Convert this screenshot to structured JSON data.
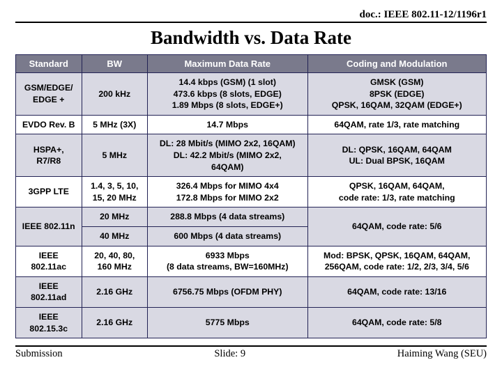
{
  "doc_header": "doc.: IEEE 802.11-12/1196r1",
  "title": "Bandwidth vs. Data Rate",
  "table": {
    "col_widths_pct": [
      14,
      14,
      34,
      38
    ],
    "columns": [
      "Standard",
      "BW",
      "Maximum Data Rate",
      "Coding and Modulation"
    ],
    "rows": [
      {
        "shade": true,
        "cells": [
          {
            "text": "GSM/EDGE/\nEDGE +"
          },
          {
            "text": "200 kHz",
            "cls": "red"
          },
          {
            "text": "14.4 kbps (GSM)  (1 slot)\n473.6 kbps (8 slots, EDGE)\n1.89 Mbps (8 slots, EDGE+)"
          },
          {
            "text": "GMSK (GSM)\n8PSK (EDGE)\nQPSK, 16QAM, 32QAM (EDGE+)"
          }
        ]
      },
      {
        "shade": false,
        "cells": [
          {
            "text": "EVDO Rev. B"
          },
          {
            "text": "5 MHz (3X)"
          },
          {
            "text": "14.7 Mbps"
          },
          {
            "text": "64QAM, rate 1/3, rate matching"
          }
        ]
      },
      {
        "shade": true,
        "cells": [
          {
            "text": "HSPA+,\nR7/R8"
          },
          {
            "text": "5 MHz"
          },
          {
            "text": "DL: 28 Mbit/s (MIMO 2x2, 16QAM)\nDL: 42.2 Mbit/s (MIMO 2x2,\n64QAM)"
          },
          {
            "text": "DL: QPSK, 16QAM, 64QAM\nUL: Dual BPSK, 16QAM"
          }
        ]
      },
      {
        "shade": false,
        "cells": [
          {
            "text": "3GPP LTE"
          },
          {
            "text": "1.4, 3, 5, 10,\n15, 20 MHz"
          },
          {
            "text": "326.4 Mbps for MIMO 4x4\n172.8 Mbps for MIMO 2x2"
          },
          {
            "text": "QPSK, 16QAM, 64QAM,\ncode rate: 1/3, rate matching"
          }
        ]
      },
      {
        "shade": true,
        "rowspan_first": 2,
        "cells": [
          {
            "text": "IEEE 802.11n",
            "rowspan": 2
          },
          {
            "text": "20 MHz"
          },
          {
            "text": "288.8 Mbps (4 data streams)"
          },
          {
            "text": "64QAM, code rate: 5/6",
            "rowspan": 2
          }
        ]
      },
      {
        "shade": true,
        "cells": [
          {
            "text": "40 MHz"
          },
          {
            "text": "600 Mbps (4 data streams)"
          }
        ]
      },
      {
        "shade": false,
        "cells": [
          {
            "text": "IEEE\n802.11ac"
          },
          {
            "text": "20, 40, 80,\n160 MHz"
          },
          {
            "text": "6933 Mbps\n(8 data streams, BW=160MHz)"
          },
          {
            "text": "Mod: BPSK, QPSK, 16QAM, 64QAM,\n256QAM, code rate: 1/2, 2/3, 3/4, 5/6"
          }
        ]
      },
      {
        "shade": true,
        "cells": [
          {
            "text": "IEEE\n802.11ad",
            "cls": "blue"
          },
          {
            "text": "2.16 GHz",
            "cls": "red"
          },
          {
            "text": "6756.75 Mbps (OFDM PHY)",
            "cls": "blue"
          },
          {
            "text": "64QAM, code rate: 13/16",
            "cls": "blue"
          }
        ]
      },
      {
        "shade": true,
        "cells": [
          {
            "text": "IEEE\n802.15.3c"
          },
          {
            "text": "2.16 GHz",
            "cls": "red"
          },
          {
            "text": "5775 Mbps"
          },
          {
            "text": "64QAM, code rate: 5/8"
          }
        ]
      }
    ]
  },
  "footer": {
    "left": "Submission",
    "center": "Slide: 9",
    "right": "Haiming Wang (SEU)"
  }
}
